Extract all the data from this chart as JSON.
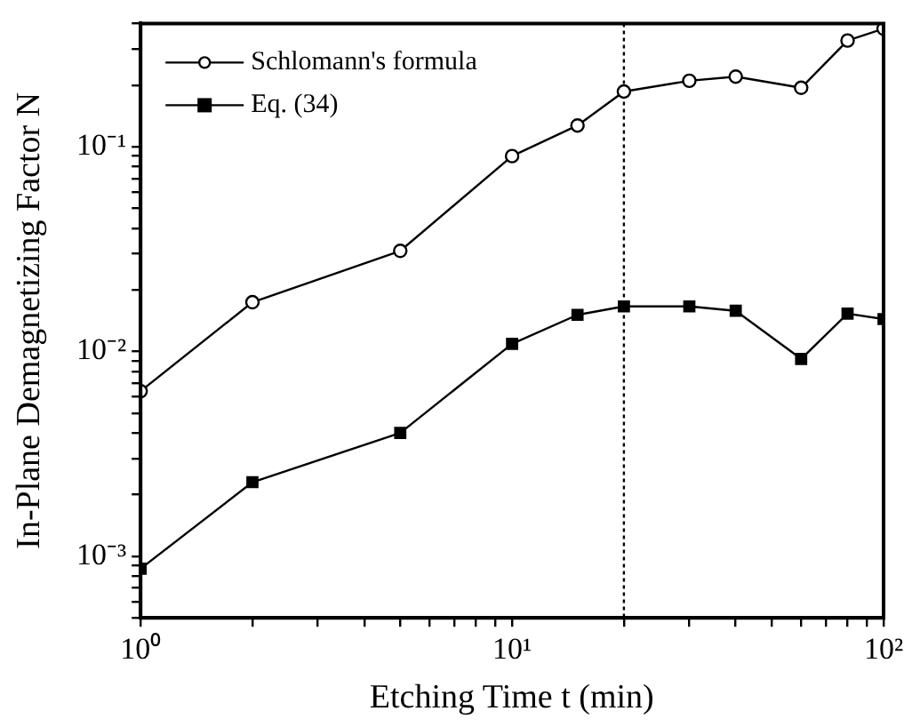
{
  "chart_data": {
    "type": "line",
    "xlabel": "Etching Time t (min)",
    "ylabel": "In-Plane Demagnetizing Factor N",
    "x": [
      1,
      2,
      5,
      10,
      15,
      20,
      30,
      40,
      60,
      80,
      100
    ],
    "series": [
      {
        "name": "Schlomann's formula",
        "color": "#000000",
        "marker": "circle",
        "values": [
          0.0064,
          0.0174,
          0.031,
          0.09,
          0.127,
          0.186,
          0.21,
          0.22,
          0.194,
          0.33,
          0.377
        ]
      },
      {
        "name": "Eq. (34)",
        "color": "#000000",
        "marker": "square",
        "values": [
          0.00087,
          0.0023,
          0.004,
          0.0109,
          0.0151,
          0.0166,
          0.0166,
          0.0158,
          0.0092,
          0.0153,
          0.0144
        ]
      }
    ],
    "log": "xy",
    "xlim": [
      1,
      100
    ],
    "ylim": [
      0.0005,
      0.4
    ],
    "xticks": [
      {
        "value": 1,
        "label": "10⁰"
      },
      {
        "value": 2,
        "label": null
      },
      {
        "value": 3,
        "label": null
      },
      {
        "value": 4,
        "label": null
      },
      {
        "value": 5,
        "label": null
      },
      {
        "value": 6,
        "label": null
      },
      {
        "value": 7,
        "label": null
      },
      {
        "value": 8,
        "label": null
      },
      {
        "value": 9,
        "label": null
      },
      {
        "value": 10,
        "label": "10¹"
      },
      {
        "value": 20,
        "label": null
      },
      {
        "value": 30,
        "label": null
      },
      {
        "value": 40,
        "label": null
      },
      {
        "value": 50,
        "label": null
      },
      {
        "value": 60,
        "label": null
      },
      {
        "value": 70,
        "label": null
      },
      {
        "value": 80,
        "label": null
      },
      {
        "value": 90,
        "label": null
      },
      {
        "value": 100,
        "label": "10²"
      }
    ],
    "yticks": [
      {
        "value": 0.0005,
        "label": null
      },
      {
        "value": 0.0006,
        "label": null
      },
      {
        "value": 0.0007,
        "label": null
      },
      {
        "value": 0.0008,
        "label": null
      },
      {
        "value": 0.0009,
        "label": null
      },
      {
        "value": 0.001,
        "label": "10⁻³"
      },
      {
        "value": 0.002,
        "label": null
      },
      {
        "value": 0.003,
        "label": null
      },
      {
        "value": 0.004,
        "label": null
      },
      {
        "value": 0.005,
        "label": null
      },
      {
        "value": 0.006,
        "label": null
      },
      {
        "value": 0.007,
        "label": null
      },
      {
        "value": 0.008,
        "label": null
      },
      {
        "value": 0.009,
        "label": null
      },
      {
        "value": 0.01,
        "label": "10⁻²"
      },
      {
        "value": 0.02,
        "label": null
      },
      {
        "value": 0.03,
        "label": null
      },
      {
        "value": 0.04,
        "label": null
      },
      {
        "value": 0.05,
        "label": null
      },
      {
        "value": 0.06,
        "label": null
      },
      {
        "value": 0.07,
        "label": null
      },
      {
        "value": 0.08,
        "label": null
      },
      {
        "value": 0.09,
        "label": null
      },
      {
        "value": 0.1,
        "label": "10⁻¹"
      },
      {
        "value": 0.2,
        "label": null
      },
      {
        "value": 0.3,
        "label": null
      },
      {
        "value": 0.4,
        "label": null
      }
    ],
    "ref_lines": [
      {
        "axis": "x",
        "value": 20,
        "line_style": "dotted",
        "color": "#000000"
      }
    ],
    "legend": "top left",
    "grid": false
  }
}
